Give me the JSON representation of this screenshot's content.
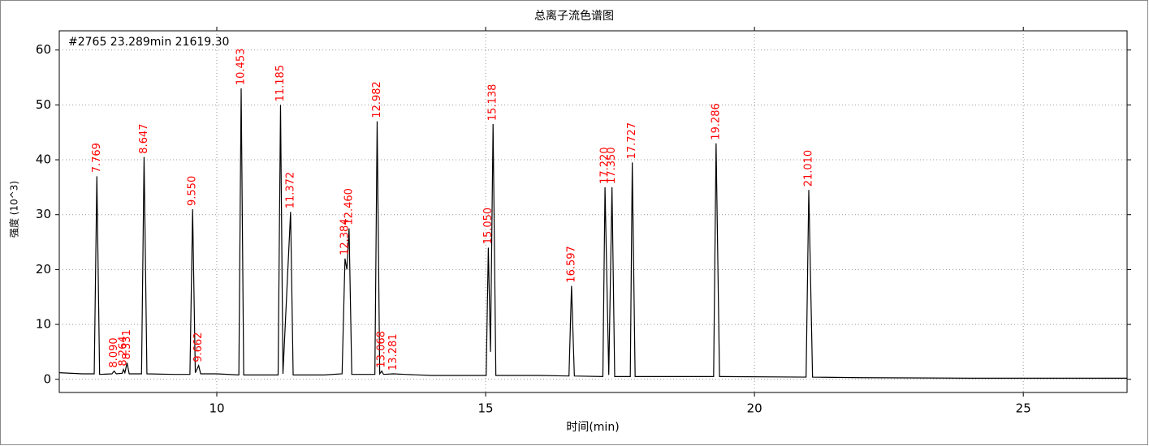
{
  "chart_data": {
    "type": "line",
    "title": "总离子流色谱图",
    "annotation": "#2765  23.289min  21619.30",
    "x_label": "时间(min)",
    "y_label": "强度 (10^3)",
    "xlim": [
      7.07,
      26.93
    ],
    "ylim": [
      -2.4,
      63.5
    ],
    "xticks": [
      10,
      15,
      20,
      25
    ],
    "yticks": [
      0,
      10,
      20,
      30,
      40,
      50,
      60
    ],
    "grid": true,
    "color": "#000000",
    "label_color": "#ff0000",
    "x": [
      7.07,
      7.5,
      7.72,
      7.769,
      7.82,
      8.05,
      8.09,
      8.13,
      8.24,
      8.264,
      8.29,
      8.331,
      8.37,
      8.6,
      8.647,
      8.7,
      9.2,
      9.5,
      9.55,
      9.6,
      9.662,
      9.7,
      10.0,
      10.41,
      10.453,
      10.5,
      11.14,
      11.185,
      11.23,
      11.372,
      11.42,
      12.0,
      12.33,
      12.384,
      12.42,
      12.46,
      12.51,
      12.94,
      12.982,
      13.03,
      13.068,
      13.1,
      13.281,
      13.5,
      14.0,
      15.01,
      15.05,
      15.09,
      15.138,
      15.19,
      16.0,
      16.55,
      16.597,
      16.65,
      17.18,
      17.22,
      17.29,
      17.35,
      17.4,
      17.69,
      17.727,
      17.78,
      19.24,
      19.286,
      19.35,
      20.96,
      21.01,
      21.08,
      22.0,
      24.0,
      26.93
    ],
    "values": [
      1.2,
      1.0,
      1.0,
      37,
      0.9,
      1.0,
      1.5,
      1.0,
      1.1,
      1.8,
      1.2,
      3.0,
      1.0,
      1.0,
      40.5,
      1.0,
      0.9,
      0.9,
      31,
      1.2,
      2.5,
      1.0,
      1.0,
      0.8,
      53,
      0.8,
      0.8,
      50,
      1.0,
      30.5,
      0.8,
      0.8,
      1.0,
      22,
      20,
      27.5,
      0.9,
      0.9,
      47,
      1.0,
      1.5,
      0.9,
      1.0,
      0.9,
      0.7,
      0.7,
      24,
      5,
      46.5,
      0.7,
      0.7,
      0.6,
      17,
      0.6,
      0.5,
      35,
      0.8,
      35,
      0.5,
      0.5,
      39.5,
      0.5,
      0.5,
      43,
      0.5,
      0.4,
      34.5,
      0.4,
      0.3,
      0.2,
      0.2
    ],
    "peak_labels": {
      "x": [
        7.769,
        8.09,
        8.264,
        8.331,
        8.647,
        9.55,
        9.662,
        10.453,
        11.185,
        11.372,
        12.384,
        12.46,
        12.982,
        13.068,
        13.281,
        15.05,
        15.138,
        16.597,
        17.22,
        17.35,
        17.727,
        19.286,
        21.01
      ],
      "y": [
        37,
        1.5,
        1.8,
        3.0,
        40.5,
        31,
        2.5,
        53,
        50,
        30.5,
        22,
        27.5,
        47,
        1.5,
        1.0,
        24,
        46.5,
        17,
        35,
        35,
        39.5,
        43,
        34.5
      ],
      "labels": [
        "7.769",
        "8.090",
        "8.264",
        "8.331",
        "8.647",
        "9.550",
        "9.662",
        "10.453",
        "11.185",
        "11.372",
        "12.384",
        "12.460",
        "12.982",
        "13.068",
        "13.281",
        "15.050",
        "15.138",
        "16.597",
        "17.220",
        "17.350",
        "17.727",
        "19.286",
        "21.010"
      ]
    }
  }
}
